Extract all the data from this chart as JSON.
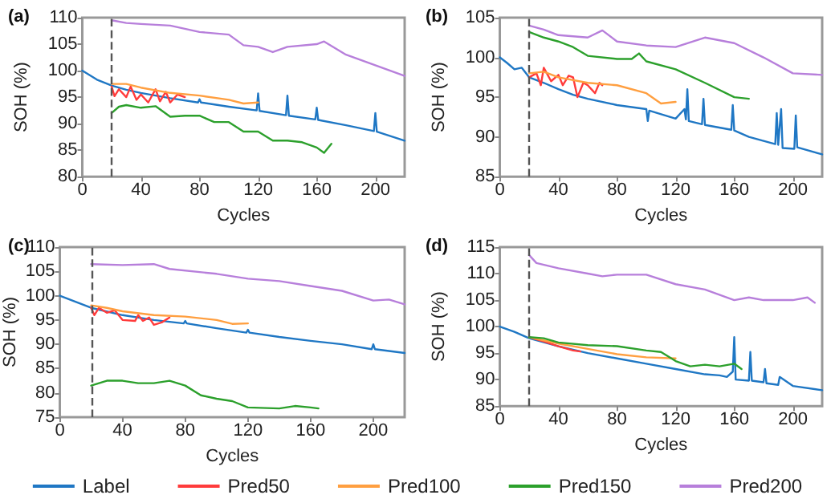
{
  "chart_data": [
    {
      "type": "line",
      "title": "(a)",
      "xlabel": "Cycles",
      "ylabel": "SOH (%)",
      "xlim": [
        0,
        220
      ],
      "ylim": [
        80,
        110
      ],
      "xticks": [
        0,
        40,
        80,
        120,
        160,
        200
      ],
      "yticks": [
        80,
        85,
        90,
        95,
        100,
        105,
        110
      ],
      "marker": "none",
      "line_style": "solid",
      "ref_lines": [
        {
          "axis": "x",
          "value": 20,
          "color": "#555555",
          "line_style": "dashed"
        }
      ],
      "series": [
        {
          "color": "#1f77c4",
          "x": [
            0,
            10,
            20,
            30,
            40,
            60,
            79,
            80,
            81,
            100,
            119,
            120,
            121,
            139,
            140,
            141,
            159,
            160,
            161,
            180,
            199,
            200,
            201,
            220
          ],
          "values": [
            100,
            98.3,
            97.2,
            96.4,
            95.8,
            94.8,
            94,
            94.6,
            94,
            93.2,
            92.5,
            95.7,
            92.4,
            91.6,
            95.3,
            91.5,
            90.8,
            93,
            90.7,
            89.7,
            88.6,
            92,
            88.5,
            86.8
          ]
        },
        {
          "color": "#ff3b3b",
          "x": [
            20,
            22,
            25,
            30,
            33,
            37,
            40,
            45,
            50,
            53,
            57,
            60,
            65,
            70
          ],
          "values": [
            97,
            95.2,
            96.5,
            95,
            97,
            94.5,
            95.5,
            94,
            96.5,
            94.2,
            96,
            94,
            95.5,
            95
          ]
        },
        {
          "color": "#ff9f40",
          "x": [
            20,
            30,
            40,
            60,
            80,
            100,
            110,
            120
          ],
          "values": [
            97.5,
            97.5,
            96.8,
            95.8,
            95.3,
            94.5,
            93.8,
            94
          ]
        },
        {
          "color": "#2ca02c",
          "x": [
            20,
            25,
            30,
            40,
            50,
            60,
            70,
            80,
            90,
            100,
            110,
            120,
            130,
            140,
            150,
            160,
            165,
            170
          ],
          "values": [
            92,
            93.2,
            93.5,
            93,
            93.3,
            91.3,
            91.5,
            91.5,
            90.3,
            90.3,
            88.5,
            88.5,
            86.8,
            86.8,
            86.5,
            85.5,
            84.5,
            86.2
          ]
        },
        {
          "color": "#b77fdb",
          "x": [
            20,
            30,
            40,
            60,
            80,
            100,
            110,
            120,
            130,
            140,
            160,
            165,
            180,
            200,
            220
          ],
          "values": [
            109.5,
            109,
            108.8,
            108.5,
            107.3,
            106.8,
            104.8,
            104.5,
            103.5,
            104.5,
            105,
            105.5,
            103,
            101,
            99
          ]
        }
      ]
    },
    {
      "type": "line",
      "title": "(b)",
      "xlabel": "Cycles",
      "ylabel": "SOH (%)",
      "xlim": [
        0,
        220
      ],
      "ylim": [
        85,
        105
      ],
      "xticks": [
        0,
        40,
        80,
        120,
        160,
        200
      ],
      "yticks": [
        85,
        90,
        95,
        100,
        105
      ],
      "marker": "none",
      "line_style": "solid",
      "ref_lines": [
        {
          "axis": "x",
          "value": 20,
          "color": "#555555",
          "line_style": "dashed"
        }
      ],
      "series": [
        {
          "color": "#1f77c4",
          "x": [
            0,
            5,
            10,
            15,
            20,
            30,
            40,
            50,
            60,
            80,
            100,
            101,
            102,
            120,
            126,
            127,
            128,
            129,
            138,
            139,
            140,
            158,
            159,
            160,
            170,
            188,
            189,
            190,
            192,
            193,
            201,
            202,
            203,
            220
          ],
          "values": [
            100,
            99.3,
            98.5,
            98.7,
            97.5,
            96.8,
            96,
            95.3,
            94.8,
            94,
            93.5,
            92,
            93.3,
            92.3,
            93.5,
            92.2,
            96,
            92,
            91.6,
            94.8,
            91.5,
            90.9,
            94,
            90.8,
            90,
            89.1,
            93,
            89,
            93.5,
            88.6,
            88.5,
            92.7,
            88.7,
            87.8
          ]
        },
        {
          "color": "#ff3b3b",
          "x": [
            20,
            25,
            28,
            30,
            35,
            40,
            43,
            47,
            50,
            53,
            57,
            60,
            65,
            68,
            70
          ],
          "values": [
            97.5,
            98,
            96.5,
            98.7,
            97,
            97.8,
            96.5,
            97.7,
            97.5,
            95,
            96.8,
            96.5,
            95.5,
            96.8,
            96.5
          ]
        },
        {
          "color": "#ff9f40",
          "x": [
            20,
            30,
            40,
            60,
            80,
            100,
            110,
            120
          ],
          "values": [
            98,
            98.2,
            97.5,
            96.8,
            96.5,
            95.5,
            94.2,
            94.4
          ]
        },
        {
          "color": "#2ca02c",
          "x": [
            20,
            30,
            40,
            50,
            60,
            80,
            90,
            95,
            100,
            120,
            140,
            160,
            170
          ],
          "values": [
            103.2,
            102.5,
            102,
            101.3,
            100.2,
            99.8,
            99.8,
            100.5,
            99.5,
            98.5,
            96.8,
            95,
            94.8
          ]
        },
        {
          "color": "#b77fdb",
          "x": [
            20,
            30,
            40,
            60,
            70,
            80,
            100,
            120,
            140,
            160,
            180,
            200,
            220
          ],
          "values": [
            104,
            103.5,
            102.8,
            102.5,
            103.4,
            102,
            101.5,
            101.3,
            102.5,
            101.8,
            100,
            98,
            97.8
          ]
        }
      ]
    },
    {
      "type": "line",
      "title": "(c)",
      "xlabel": "Cycles",
      "ylabel": "SOH (%)",
      "xlim": [
        0,
        220
      ],
      "ylim": [
        75,
        110
      ],
      "xticks": [
        0,
        40,
        80,
        120,
        160,
        200
      ],
      "yticks": [
        75,
        80,
        85,
        90,
        95,
        100,
        105,
        110
      ],
      "marker": "none",
      "line_style": "solid",
      "legend": "bottom",
      "ref_lines": [
        {
          "axis": "x",
          "value": 20,
          "color": "#555555",
          "line_style": "dashed"
        }
      ],
      "series": [
        {
          "name": "Label",
          "color": "#1f77c4",
          "x": [
            0,
            20,
            40,
            60,
            79,
            80,
            81,
            100,
            119,
            120,
            121,
            140,
            160,
            180,
            199,
            200,
            201,
            220
          ],
          "values": [
            100,
            97.5,
            96,
            95,
            94.3,
            94.8,
            94.3,
            93.3,
            92.4,
            93,
            92.4,
            91.5,
            90.7,
            90,
            89,
            90,
            89,
            88.2
          ]
        },
        {
          "name": "Pred50",
          "color": "#ff3b3b",
          "x": [
            20,
            22,
            25,
            30,
            35,
            40,
            48,
            50,
            53,
            57,
            60,
            65,
            70
          ],
          "values": [
            97.5,
            96,
            97.5,
            96.5,
            97,
            95,
            94.8,
            96,
            94.8,
            95.5,
            94,
            94.5,
            95.5
          ]
        },
        {
          "name": "Pred100",
          "color": "#ff9f40",
          "x": [
            20,
            30,
            40,
            60,
            80,
            100,
            110,
            120
          ],
          "values": [
            98,
            97.5,
            96.8,
            96,
            95.7,
            95,
            94.2,
            94.3
          ]
        },
        {
          "name": "Pred150",
          "color": "#2ca02c",
          "x": [
            20,
            30,
            40,
            50,
            60,
            70,
            80,
            90,
            100,
            110,
            120,
            140,
            150,
            160,
            165
          ],
          "values": [
            81.5,
            82.5,
            82.5,
            82,
            82,
            82.5,
            81.5,
            79.5,
            78.8,
            78.3,
            77,
            76.8,
            77.3,
            77,
            76.8
          ]
        },
        {
          "name": "Pred200",
          "color": "#b77fdb",
          "x": [
            20,
            40,
            60,
            70,
            100,
            120,
            140,
            160,
            180,
            200,
            210,
            220
          ],
          "values": [
            106.5,
            106.3,
            106.5,
            105.5,
            104.5,
            103.5,
            103,
            102,
            101,
            99,
            99.2,
            98.2
          ]
        }
      ]
    },
    {
      "type": "line",
      "title": "(d)",
      "xlabel": "Cycles",
      "ylabel": "SOH (%)",
      "xlim": [
        0,
        220
      ],
      "ylim": [
        85,
        115
      ],
      "xticks": [
        0,
        40,
        80,
        120,
        160,
        200
      ],
      "yticks": [
        85,
        90,
        95,
        100,
        105,
        110,
        115
      ],
      "marker": "none",
      "line_style": "solid",
      "ref_lines": [
        {
          "axis": "x",
          "value": 20,
          "color": "#555555",
          "line_style": "dashed"
        }
      ],
      "series": [
        {
          "color": "#1f77c4",
          "x": [
            0,
            10,
            20,
            40,
            60,
            80,
            100,
            120,
            140,
            150,
            155,
            159,
            160,
            161,
            170,
            171,
            172,
            180,
            181,
            182,
            190,
            191,
            200,
            220
          ],
          "values": [
            100,
            99,
            97.8,
            96.3,
            95,
            94,
            93,
            92,
            91,
            90.8,
            90.5,
            91.5,
            98,
            90,
            89.8,
            95.2,
            89.8,
            89.5,
            92,
            89.3,
            89,
            90.5,
            88.8,
            88
          ]
        },
        {
          "color": "#ff3b3b",
          "x": [
            20,
            30,
            40,
            50,
            55
          ],
          "values": [
            98,
            97.2,
            96.3,
            95.5,
            95.3
          ]
        },
        {
          "color": "#ff9f40",
          "x": [
            20,
            40,
            60,
            80,
            100,
            120
          ],
          "values": [
            98,
            96.8,
            95.8,
            94.8,
            94.2,
            94
          ]
        },
        {
          "color": "#2ca02c",
          "x": [
            20,
            30,
            40,
            60,
            80,
            100,
            110,
            120,
            130,
            140,
            150,
            160,
            165
          ],
          "values": [
            98,
            97.8,
            97,
            96.5,
            96.3,
            95.5,
            95.2,
            93.5,
            92.5,
            92.8,
            92.5,
            93,
            92
          ]
        },
        {
          "color": "#b77fdb",
          "x": [
            20,
            25,
            40,
            60,
            70,
            80,
            100,
            120,
            140,
            160,
            170,
            180,
            200,
            210,
            215
          ],
          "values": [
            113.5,
            112,
            111,
            110,
            109.5,
            109.8,
            109.8,
            108,
            107,
            105,
            105.5,
            105,
            105,
            105.5,
            104.5
          ]
        }
      ]
    }
  ]
}
